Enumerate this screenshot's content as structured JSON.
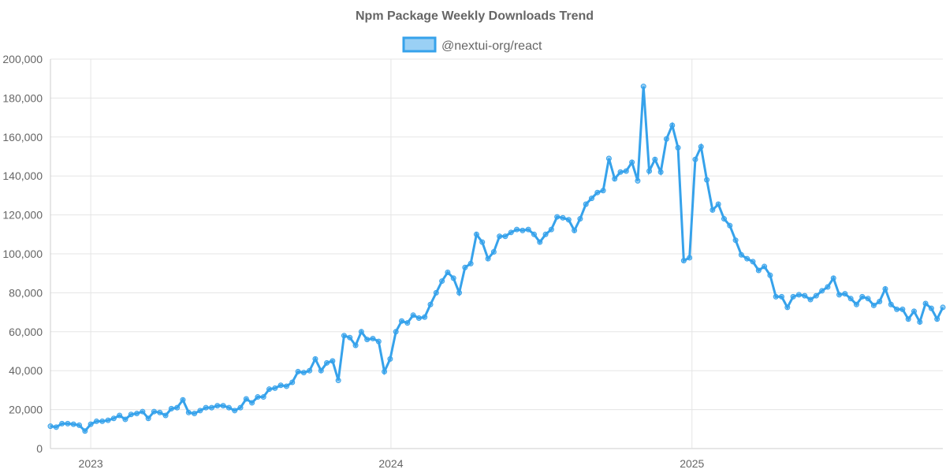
{
  "chart_data": {
    "type": "line",
    "title": "Npm Package Weekly Downloads Trend",
    "legend_position": "top",
    "grid": true,
    "ylim": [
      0,
      200000
    ],
    "y_ticks": [
      "0",
      "20,000",
      "40,000",
      "60,000",
      "80,000",
      "100,000",
      "120,000",
      "140,000",
      "160,000",
      "180,000",
      "200,000"
    ],
    "x_ticks": [
      {
        "date": "2023-01-01",
        "label": "2023"
      },
      {
        "date": "2024-01-01",
        "label": "2024"
      },
      {
        "date": "2025-01-01",
        "label": "2025"
      }
    ],
    "colors": {
      "line": "#36a2eb",
      "fill": "#9ad0f5",
      "grid": "#e5e5e5"
    },
    "x": [
      "2022-11-13",
      "2022-11-20",
      "2022-11-27",
      "2022-12-04",
      "2022-12-11",
      "2022-12-18",
      "2022-12-25",
      "2023-01-01",
      "2023-01-08",
      "2023-01-15",
      "2023-01-22",
      "2023-01-29",
      "2023-02-05",
      "2023-02-12",
      "2023-02-19",
      "2023-02-26",
      "2023-03-05",
      "2023-03-12",
      "2023-03-19",
      "2023-03-26",
      "2023-04-02",
      "2023-04-09",
      "2023-04-16",
      "2023-04-23",
      "2023-04-30",
      "2023-05-07",
      "2023-05-14",
      "2023-05-21",
      "2023-05-28",
      "2023-06-04",
      "2023-06-11",
      "2023-06-18",
      "2023-06-25",
      "2023-07-02",
      "2023-07-09",
      "2023-07-16",
      "2023-07-23",
      "2023-07-30",
      "2023-08-06",
      "2023-08-13",
      "2023-08-20",
      "2023-08-27",
      "2023-09-03",
      "2023-09-10",
      "2023-09-17",
      "2023-09-24",
      "2023-10-01",
      "2023-10-08",
      "2023-10-15",
      "2023-10-22",
      "2023-10-29",
      "2023-11-05",
      "2023-11-12",
      "2023-11-19",
      "2023-11-26",
      "2023-12-03",
      "2023-12-10",
      "2023-12-17",
      "2023-12-24",
      "2023-12-31",
      "2024-01-07",
      "2024-01-14",
      "2024-01-21",
      "2024-01-28",
      "2024-02-04",
      "2024-02-11",
      "2024-02-18",
      "2024-02-25",
      "2024-03-03",
      "2024-03-10",
      "2024-03-17",
      "2024-03-24",
      "2024-03-31",
      "2024-04-07",
      "2024-04-14",
      "2024-04-21",
      "2024-04-28",
      "2024-05-05",
      "2024-05-12",
      "2024-05-19",
      "2024-05-26",
      "2024-06-02",
      "2024-06-09",
      "2024-06-16",
      "2024-06-23",
      "2024-06-30",
      "2024-07-07",
      "2024-07-14",
      "2024-07-21",
      "2024-07-28",
      "2024-08-04",
      "2024-08-11",
      "2024-08-18",
      "2024-08-25",
      "2024-09-01",
      "2024-09-08",
      "2024-09-15",
      "2024-09-22",
      "2024-09-29",
      "2024-10-06",
      "2024-10-13",
      "2024-10-20",
      "2024-10-27",
      "2024-11-03",
      "2024-11-10",
      "2024-11-17",
      "2024-11-24",
      "2024-12-01",
      "2024-12-08",
      "2024-12-15",
      "2024-12-22",
      "2024-12-29",
      "2025-01-05",
      "2025-01-12",
      "2025-01-19",
      "2025-01-26",
      "2025-02-02",
      "2025-02-09",
      "2025-02-16",
      "2025-02-23",
      "2025-03-02",
      "2025-03-09",
      "2025-03-16",
      "2025-03-23",
      "2025-03-30",
      "2025-04-06",
      "2025-04-13",
      "2025-04-20",
      "2025-04-27",
      "2025-05-04",
      "2025-05-11",
      "2025-05-18",
      "2025-05-25",
      "2025-06-01",
      "2025-06-08",
      "2025-06-15",
      "2025-06-22",
      "2025-06-29",
      "2025-07-06",
      "2025-07-13",
      "2025-07-20",
      "2025-07-27",
      "2025-08-03",
      "2025-08-10",
      "2025-08-17",
      "2025-08-24",
      "2025-08-31",
      "2025-09-07",
      "2025-09-14",
      "2025-09-21",
      "2025-09-28",
      "2025-10-05",
      "2025-10-12",
      "2025-10-19",
      "2025-10-26",
      "2025-11-02"
    ],
    "series": [
      {
        "name": "@nextui-org/react",
        "values": [
          11500,
          11000,
          12800,
          12800,
          12500,
          12000,
          9000,
          12500,
          14000,
          14000,
          14500,
          15500,
          17000,
          15000,
          17500,
          18000,
          19000,
          15500,
          19000,
          18500,
          17000,
          20500,
          21000,
          25000,
          18500,
          18000,
          19500,
          21000,
          21000,
          22000,
          22000,
          21000,
          19500,
          21000,
          25500,
          23500,
          26500,
          26500,
          30500,
          31000,
          32500,
          32000,
          34000,
          39500,
          39000,
          40000,
          46000,
          40000,
          44000,
          45000,
          35000,
          58000,
          57000,
          53000,
          60000,
          56000,
          56500,
          55000,
          39500,
          46000,
          60000,
          65500,
          64500,
          68500,
          67000,
          67500,
          74000,
          80000,
          86000,
          90500,
          87500,
          80000,
          93000,
          95000,
          110000,
          106000,
          97500,
          101000,
          109000,
          109000,
          111000,
          112500,
          112000,
          112500,
          110000,
          106000,
          110000,
          112500,
          119000,
          118500,
          117500,
          112000,
          118000,
          125500,
          128500,
          131500,
          132500,
          149000,
          138500,
          142000,
          142500,
          147000,
          137500,
          186000,
          142500,
          148500,
          142000,
          159000,
          166000,
          154500,
          96500,
          98000,
          148500,
          155000,
          138000,
          122500,
          125500,
          118000,
          114500,
          107000,
          99500,
          97500,
          96000,
          91500,
          93500,
          89000,
          78000,
          78000,
          72500,
          78000,
          79000,
          78500,
          76500,
          78500,
          81000,
          83000,
          87500,
          79000,
          79500,
          77000,
          74000,
          78000,
          77000,
          73500,
          75500,
          82000,
          74000,
          71500,
          71500,
          66500,
          70500,
          65000,
          74500,
          72000,
          66500,
          72500
        ]
      }
    ]
  }
}
